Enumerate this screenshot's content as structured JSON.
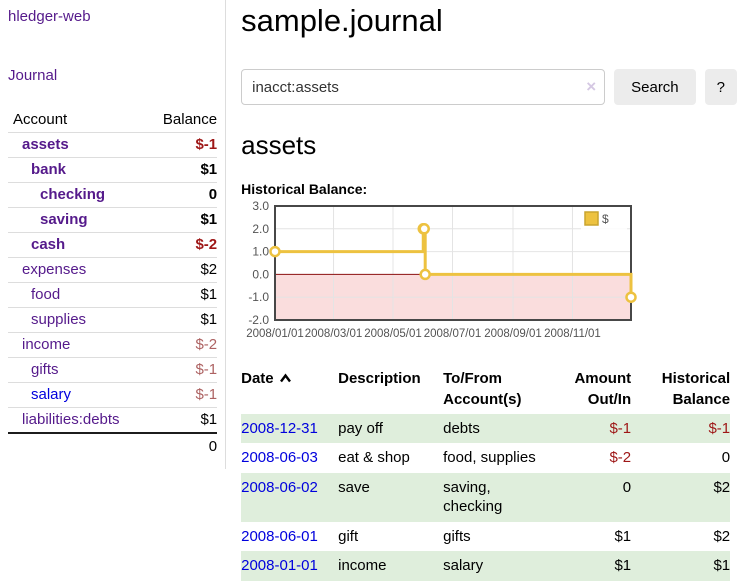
{
  "colors": {
    "brand_purple": "#551a8b",
    "link_blue": "#0000dd",
    "negative_red": "#9e1616",
    "muted_negative_red": "#ad6262",
    "row_stripe_green": "#dfeedc",
    "chart_line_gold": "#edc240",
    "chart_negative_region_pink": "#fadddd",
    "chart_zero_line_red": "#8b1111"
  },
  "sidebar": {
    "app_title": "hledger-web",
    "nav": {
      "journal_label": "Journal"
    },
    "accounts_table": {
      "headers": {
        "account": "Account",
        "balance": "Balance"
      },
      "rows": [
        {
          "name": "assets",
          "indent": 1,
          "bold": true,
          "balance": "$-1",
          "balance_style": "neg"
        },
        {
          "name": "bank",
          "indent": 2,
          "bold": true,
          "balance": "$1",
          "balance_style": ""
        },
        {
          "name": "checking",
          "indent": 3,
          "bold": true,
          "balance": "0",
          "balance_style": ""
        },
        {
          "name": "saving",
          "indent": 3,
          "bold": true,
          "balance": "$1",
          "balance_style": ""
        },
        {
          "name": "cash",
          "indent": 2,
          "bold": true,
          "balance": "$-2",
          "balance_style": "neg"
        },
        {
          "name": "expenses",
          "indent": 1,
          "bold": false,
          "balance": "$2",
          "balance_style": ""
        },
        {
          "name": "food",
          "indent": 2,
          "bold": false,
          "balance": "$1",
          "balance_style": ""
        },
        {
          "name": "supplies",
          "indent": 2,
          "bold": false,
          "balance": "$1",
          "balance_style": ""
        },
        {
          "name": "income",
          "indent": 1,
          "bold": false,
          "balance": "$-2",
          "balance_style": "mutedneg"
        },
        {
          "name": "gifts",
          "indent": 2,
          "bold": false,
          "balance": "$-1",
          "balance_style": "mutedneg"
        },
        {
          "name": "salary",
          "indent": 2,
          "bold": false,
          "link_color": "blue",
          "balance": "$-1",
          "balance_style": "mutedneg"
        },
        {
          "name": "liabilities:debts",
          "indent": 1,
          "bold": false,
          "balance": "$1",
          "balance_style": ""
        }
      ],
      "total": "0"
    }
  },
  "header": {
    "title": "sample.journal"
  },
  "search": {
    "value": "inacct:assets",
    "clear_icon": "×",
    "button_label": "Search",
    "help_label": "?"
  },
  "account_page": {
    "title": "assets",
    "chart_label": "Historical Balance:"
  },
  "chart_data": {
    "type": "line",
    "style": "step",
    "title": "Historical Balance",
    "xlabel": "",
    "ylabel": "",
    "x_range": [
      "2008-01-01",
      "2008-12-31"
    ],
    "ylim": [
      -2,
      3
    ],
    "grid": true,
    "legend_position": "top-right",
    "series": [
      {
        "name": "$",
        "color": "#edc240",
        "points": [
          [
            "2008-01-01",
            1
          ],
          [
            "2008-06-01",
            2
          ],
          [
            "2008-06-02",
            2
          ],
          [
            "2008-06-03",
            0
          ],
          [
            "2008-12-31",
            -1
          ]
        ]
      }
    ],
    "y_ticks": [
      {
        "v": 3,
        "label": "3.0"
      },
      {
        "v": 2,
        "label": "2.0"
      },
      {
        "v": 1,
        "label": "1.0"
      },
      {
        "v": 0,
        "label": "0.0"
      },
      {
        "v": -1,
        "label": "-1.0"
      },
      {
        "v": -2,
        "label": "-2.0"
      }
    ],
    "x_ticks": [
      {
        "v": "2008-01-01",
        "label": "2008/01/01"
      },
      {
        "v": "2008-03-01",
        "label": "2008/03/01"
      },
      {
        "v": "2008-05-01",
        "label": "2008/05/01"
      },
      {
        "v": "2008-07-01",
        "label": "2008/07/01"
      },
      {
        "v": "2008-09-01",
        "label": "2008/09/01"
      },
      {
        "v": "2008-11-01",
        "label": "2008/11/01"
      }
    ],
    "negative_region_color": "#fadddd",
    "zero_line_color": "#8b1111"
  },
  "transactions": {
    "headers": {
      "date": "Date",
      "description": "Description",
      "accounts": "To/From Account(s)",
      "amount": "Amount Out/In",
      "balance": "Historical Balance"
    },
    "rows": [
      {
        "date": "2008-12-31",
        "description": "pay off",
        "accounts": "debts",
        "amount": "$-1",
        "amount_style": "neg",
        "balance": "$-1",
        "balance_style": "neg"
      },
      {
        "date": "2008-06-03",
        "description": "eat & shop",
        "accounts": "food, supplies",
        "amount": "$-2",
        "amount_style": "neg",
        "balance": "0",
        "balance_style": ""
      },
      {
        "date": "2008-06-02",
        "description": "save",
        "accounts": "saving, checking",
        "amount": "0",
        "amount_style": "",
        "balance": "$2",
        "balance_style": ""
      },
      {
        "date": "2008-06-01",
        "description": "gift",
        "accounts": "gifts",
        "amount": "$1",
        "amount_style": "",
        "balance": "$2",
        "balance_style": ""
      },
      {
        "date": "2008-01-01",
        "description": "income",
        "accounts": "salary",
        "amount": "$1",
        "amount_style": "",
        "balance": "$1",
        "balance_style": ""
      }
    ]
  }
}
